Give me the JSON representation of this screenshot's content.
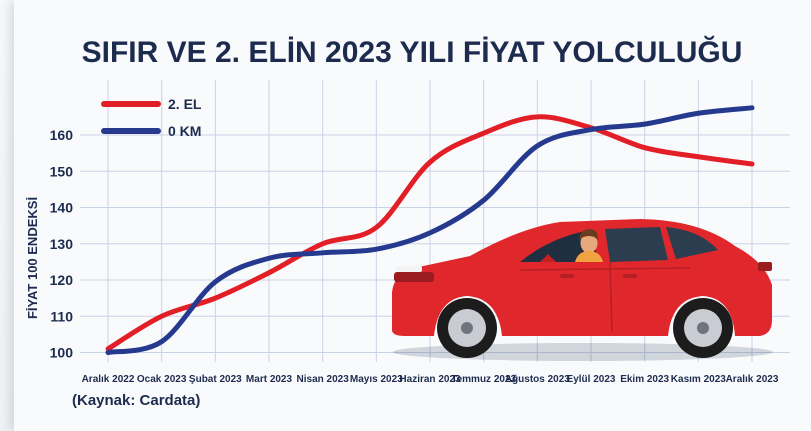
{
  "title": "SIFIR VE 2. ELİN 2023 YILI FİYAT YOLCULUĞU",
  "source": "(Kaynak: Cardata)",
  "colors": {
    "series_2el": "#e21f26",
    "series_0km": "#253a8e",
    "text": "#1d2b4f",
    "car_body": "#e0282c"
  },
  "chart_data": {
    "type": "line",
    "title": "SIFIR VE 2. ELİN 2023 YILI FİYAT YOLCULUĞU",
    "xlabel": "",
    "ylabel": "FİYAT 100 ENDEKSİ",
    "categories": [
      "Aralık 2022",
      "Ocak 2023",
      "Şubat 2023",
      "Mart 2023",
      "Nisan 2023",
      "Mayıs 2023",
      "Haziran 2023",
      "Temmuz 2023",
      "Ağustos 2023",
      "Eylül 2023",
      "Ekim 2023",
      "Kasım 2023",
      "Aralık 2023"
    ],
    "series": [
      {
        "name": "2. EL",
        "color": "#e21f26",
        "values": [
          101,
          110,
          115,
          122,
          130,
          134.5,
          152.5,
          160.5,
          165,
          162,
          156.5,
          154,
          152
        ]
      },
      {
        "name": "0 KM",
        "color": "#253a8e",
        "values": [
          100,
          103,
          119.5,
          126,
          127.5,
          128.5,
          133,
          142,
          157,
          161.5,
          163,
          166,
          167.5
        ]
      }
    ],
    "yticks": [
      100,
      110,
      120,
      130,
      140,
      150,
      160
    ],
    "ylim": [
      98,
      170
    ],
    "grid": true,
    "legend_position": "top-left"
  }
}
